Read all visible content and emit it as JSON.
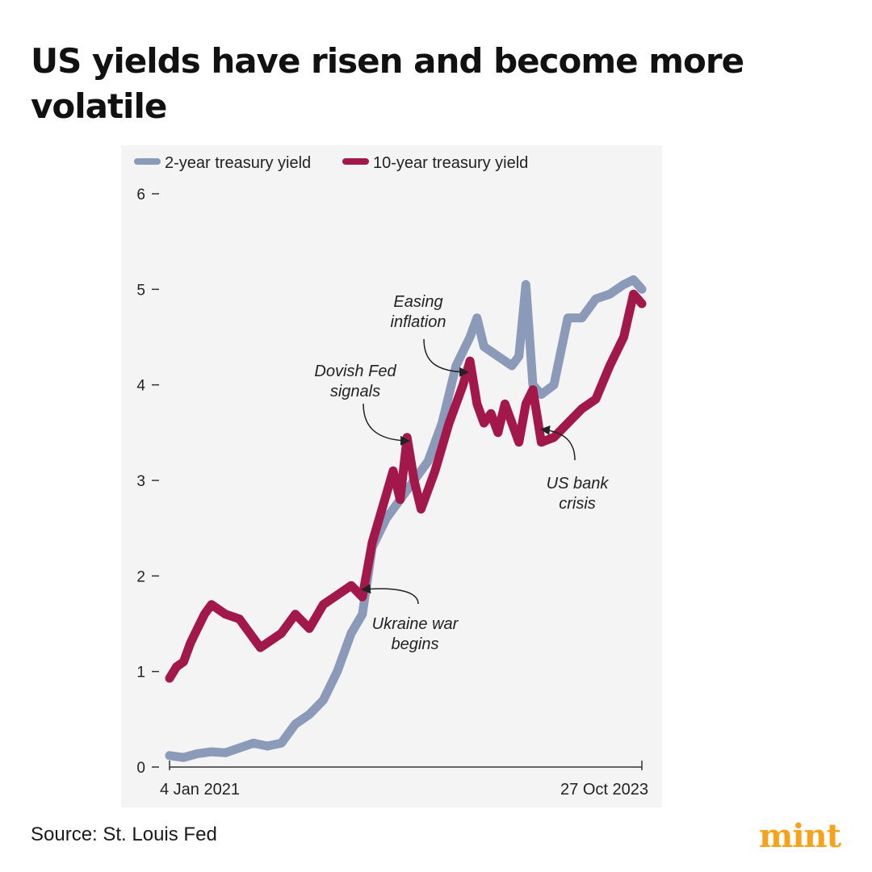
{
  "title": "US yields have risen and become more volatile",
  "source": "Source: St. Louis Fed",
  "logo": "mint",
  "colors": {
    "two_year": "#8a9ab8",
    "ten_year": "#a3184a",
    "axis": "#333333",
    "background_panel": "#f4f4f4",
    "logo": "#f7a21b"
  },
  "chart_data": {
    "type": "line",
    "title": "US yields have risen and become more volatile",
    "xlabel": "",
    "ylabel": "",
    "x_labels": [
      "4 Jan 2021",
      "27 Oct 2023"
    ],
    "ylim": [
      0,
      6
    ],
    "yticks": [
      0,
      1,
      2,
      3,
      4,
      5,
      6
    ],
    "ytick_labels": [
      "0",
      "1",
      "2",
      "3",
      "4",
      "5",
      "6"
    ],
    "x_unit": "months since 4 Jan 2021",
    "xlim": [
      0,
      33.8
    ],
    "legend_position": "top-left",
    "series": [
      {
        "name": "2-year treasury yield",
        "color": "#8a9ab8",
        "x": [
          0,
          1,
          2,
          3,
          4,
          5,
          6,
          7,
          8,
          9,
          10,
          11,
          12,
          13,
          13.8,
          14.5,
          15.5,
          16.5,
          17.5,
          18.5,
          19.5,
          20.5,
          21.5,
          22,
          22.5,
          23.5,
          24.5,
          25,
          25.5,
          26,
          26.6,
          27.5,
          28.5,
          29.5,
          30.5,
          31.5,
          32.5,
          33.2,
          33.8
        ],
        "y": [
          0.12,
          0.1,
          0.14,
          0.16,
          0.15,
          0.2,
          0.25,
          0.22,
          0.25,
          0.45,
          0.55,
          0.7,
          1.0,
          1.4,
          1.6,
          2.3,
          2.6,
          2.8,
          3.0,
          3.2,
          3.6,
          4.2,
          4.5,
          4.7,
          4.4,
          4.3,
          4.2,
          4.3,
          5.05,
          4.0,
          3.9,
          4.0,
          4.7,
          4.7,
          4.9,
          4.95,
          5.05,
          5.1,
          5.0
        ]
      },
      {
        "name": "10-year treasury yield",
        "color": "#a3184a",
        "x": [
          0,
          0.5,
          1,
          1.5,
          2,
          2.5,
          3,
          4,
          5,
          6,
          6.5,
          7,
          8,
          9,
          10,
          11,
          12,
          13,
          13.8,
          14.5,
          15.5,
          16,
          16.5,
          17,
          17.5,
          18,
          19,
          20,
          21,
          21.5,
          22,
          22.5,
          23,
          23.5,
          24,
          25,
          25.5,
          26,
          26.6,
          27.5,
          28.5,
          29.5,
          30.5,
          31.5,
          32.5,
          33.2,
          33.8
        ],
        "y": [
          0.93,
          1.05,
          1.1,
          1.3,
          1.45,
          1.6,
          1.7,
          1.6,
          1.55,
          1.35,
          1.25,
          1.3,
          1.4,
          1.6,
          1.45,
          1.7,
          1.8,
          1.9,
          1.78,
          2.35,
          2.85,
          3.1,
          2.8,
          3.45,
          3.0,
          2.7,
          3.1,
          3.6,
          4.0,
          4.25,
          3.8,
          3.6,
          3.7,
          3.5,
          3.8,
          3.4,
          3.8,
          3.95,
          3.4,
          3.45,
          3.6,
          3.75,
          3.85,
          4.2,
          4.5,
          4.95,
          4.85
        ]
      }
    ],
    "annotations": [
      {
        "text": [
          "Easing",
          "inflation"
        ],
        "x": 21.8,
        "y": 4.25
      },
      {
        "text": [
          "Dovish Fed",
          "signals"
        ],
        "x": 17.2,
        "y": 3.45
      },
      {
        "text": [
          "US bank",
          "crisis"
        ],
        "x": 27.2,
        "y": 3.45
      },
      {
        "text": [
          "Ukraine war",
          "begins"
        ],
        "x": 14.4,
        "y": 1.85
      }
    ]
  }
}
